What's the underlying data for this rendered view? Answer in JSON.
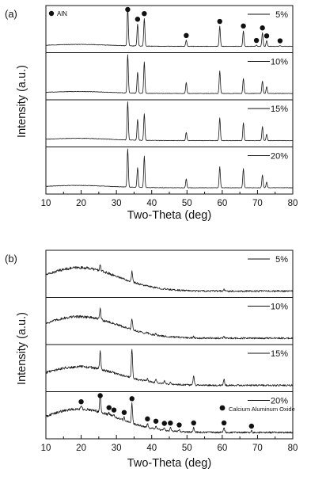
{
  "chart_data": [
    {
      "type": "line",
      "panel_label": "(a)",
      "xlabel": "Two-Theta (deg)",
      "ylabel": "Intensity (a.u.)",
      "xlim": [
        10,
        80
      ],
      "xticks": [
        10,
        20,
        30,
        40,
        50,
        60,
        70,
        80
      ],
      "y_tick_labels": false,
      "stacked": true,
      "marker_legend": "AlN",
      "peaks_marked_deg": [
        33.2,
        36.0,
        37.9,
        49.8,
        59.3,
        66.0,
        69.7,
        71.4,
        72.6,
        76.4
      ],
      "series": [
        {
          "name": "5%",
          "amorphous_hump": {
            "center": 19,
            "width": 9,
            "height": 0.05
          },
          "peaks": [
            [
              33.2,
              1.0
            ],
            [
              36.0,
              0.58
            ],
            [
              37.9,
              0.73
            ],
            [
              49.8,
              0.16
            ],
            [
              59.3,
              0.53
            ],
            [
              66.0,
              0.41
            ],
            [
              69.7,
              0.03
            ],
            [
              71.4,
              0.36
            ],
            [
              72.6,
              0.15
            ],
            [
              76.4,
              0.02
            ]
          ]
        },
        {
          "name": "10%",
          "amorphous_hump": {
            "center": 19,
            "width": 9,
            "height": 0.05
          },
          "peaks": [
            [
              33.2,
              1.0
            ],
            [
              36.0,
              0.55
            ],
            [
              37.9,
              0.82
            ],
            [
              49.8,
              0.29
            ],
            [
              59.3,
              0.6
            ],
            [
              66.0,
              0.39
            ],
            [
              71.4,
              0.33
            ],
            [
              72.6,
              0.18
            ]
          ]
        },
        {
          "name": "15%",
          "amorphous_hump": {
            "center": 19,
            "width": 9,
            "height": 0.06
          },
          "peaks": [
            [
              33.2,
              1.0
            ],
            [
              36.0,
              0.55
            ],
            [
              37.9,
              0.7
            ],
            [
              49.8,
              0.22
            ],
            [
              59.3,
              0.6
            ],
            [
              66.0,
              0.47
            ],
            [
              71.4,
              0.37
            ],
            [
              72.6,
              0.17
            ]
          ]
        },
        {
          "name": "20%",
          "amorphous_hump": {
            "center": 19,
            "width": 9,
            "height": 0.06
          },
          "peaks": [
            [
              33.2,
              1.0
            ],
            [
              36.0,
              0.52
            ],
            [
              37.9,
              0.82
            ],
            [
              49.8,
              0.23
            ],
            [
              59.3,
              0.55
            ],
            [
              66.0,
              0.5
            ],
            [
              71.4,
              0.34
            ],
            [
              72.6,
              0.15
            ]
          ]
        }
      ]
    },
    {
      "type": "line",
      "panel_label": "(b)",
      "xlabel": "Two-Theta (deg)",
      "ylabel": "Intensity (a.u.)",
      "xlim": [
        10,
        80
      ],
      "xticks": [
        10,
        20,
        30,
        40,
        50,
        60,
        70,
        80
      ],
      "y_tick_labels": false,
      "stacked": true,
      "marker_legend": "Calcium Aluminum Oxide",
      "peaks_marked_deg": [
        20.0,
        25.4,
        27.9,
        29.3,
        32.2,
        34.4,
        38.8,
        41.2,
        43.6,
        45.3,
        47.8,
        51.9,
        60.5,
        68.3
      ],
      "series": [
        {
          "name": "5%",
          "amorphous_hump": {
            "center": 19.5,
            "width": 11,
            "height": 0.78
          },
          "peaks": [
            [
              25.4,
              0.18
            ],
            [
              34.4,
              0.32
            ],
            [
              60.5,
              0.05
            ]
          ]
        },
        {
          "name": "10%",
          "amorphous_hump": {
            "center": 19.5,
            "width": 11,
            "height": 0.72
          },
          "peaks": [
            [
              25.4,
              0.34
            ],
            [
              34.4,
              0.33
            ],
            [
              38.8,
              0.05
            ],
            [
              41.2,
              0.06
            ],
            [
              51.9,
              0.05
            ],
            [
              60.5,
              0.05
            ]
          ]
        },
        {
          "name": "15%",
          "amorphous_hump": {
            "center": 19.5,
            "width": 11,
            "height": 0.62
          },
          "peaks": [
            [
              25.4,
              0.55
            ],
            [
              34.4,
              0.92
            ],
            [
              38.8,
              0.09
            ],
            [
              41.2,
              0.12
            ],
            [
              43.6,
              0.08
            ],
            [
              45.3,
              0.06
            ],
            [
              51.9,
              0.31
            ],
            [
              60.5,
              0.2
            ]
          ]
        },
        {
          "name": "20%",
          "amorphous_hump": {
            "center": 19.5,
            "width": 11,
            "height": 0.78
          },
          "peaks": [
            [
              20.0,
              0.08
            ],
            [
              25.4,
              0.62
            ],
            [
              27.9,
              0.08
            ],
            [
              29.3,
              0.06
            ],
            [
              32.2,
              0.1
            ],
            [
              34.4,
              0.62
            ],
            [
              38.8,
              0.12
            ],
            [
              41.2,
              0.1
            ],
            [
              43.6,
              0.07
            ],
            [
              45.3,
              0.1
            ],
            [
              47.8,
              0.06
            ],
            [
              51.9,
              0.14
            ],
            [
              60.5,
              0.15
            ],
            [
              68.3,
              0.05
            ]
          ]
        }
      ]
    }
  ]
}
